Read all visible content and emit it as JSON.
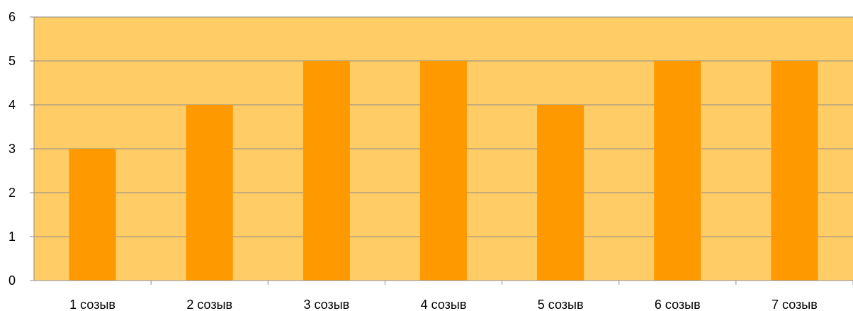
{
  "chart_data": {
    "type": "bar",
    "title": "",
    "xlabel": "",
    "ylabel": "",
    "categories": [
      "1 созыв",
      "2 созыв",
      "3 созыв",
      "4 созыв",
      "5 созыв",
      "6 созыв",
      "7 созыв"
    ],
    "values": [
      3,
      4,
      5,
      5,
      4,
      5,
      5
    ],
    "ylim": [
      0,
      6
    ],
    "yticks": [
      "0",
      "1",
      "2",
      "3",
      "4",
      "5",
      "6"
    ],
    "grid": true,
    "legend": "none",
    "colors": {
      "plot_background": "#FFCC66",
      "bar": "#FF9900",
      "gridline": "#8C8C8C",
      "axis": "#8C8C8C"
    }
  }
}
